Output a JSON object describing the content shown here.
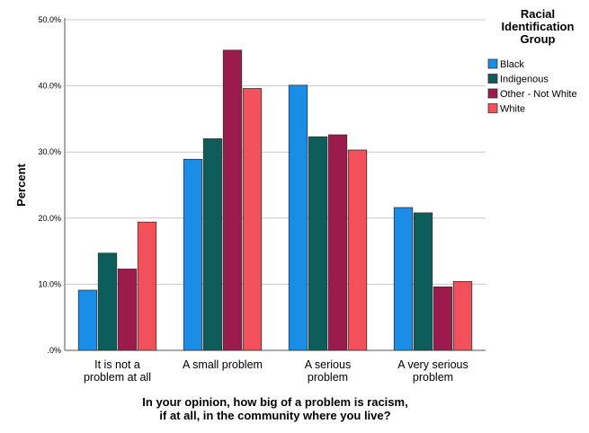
{
  "chart_data": {
    "type": "bar",
    "title": "",
    "xlabel": [
      "In your opinion, how big of a problem is racism,",
      "if at all, in the community where you live?"
    ],
    "ylabel": "Percent",
    "ylim": [
      0,
      50
    ],
    "yticks": [
      ".0%",
      "10.0%",
      "20.0%",
      "30.0%",
      "40.0%",
      "50.0%"
    ],
    "grid": true,
    "legend_position": "right",
    "legend_title": [
      "Racial",
      "Identification",
      "Group"
    ],
    "categories": [
      [
        "It is not a",
        "problem at all"
      ],
      [
        "A small problem"
      ],
      [
        "A serious",
        "problem"
      ],
      [
        "A very serious",
        "problem"
      ]
    ],
    "series": [
      {
        "name": "Black",
        "color": "#1a8ee6",
        "values": [
          9.1,
          28.9,
          40.1,
          21.6
        ]
      },
      {
        "name": "Indigenous",
        "color": "#0d5e5a",
        "values": [
          14.7,
          32.0,
          32.3,
          20.8
        ]
      },
      {
        "name": "Other - Not White",
        "color": "#9b1c4c",
        "values": [
          12.3,
          45.4,
          32.6,
          9.6
        ]
      },
      {
        "name": "White",
        "color": "#f2505a",
        "values": [
          19.4,
          39.6,
          30.3,
          10.4
        ]
      }
    ]
  }
}
